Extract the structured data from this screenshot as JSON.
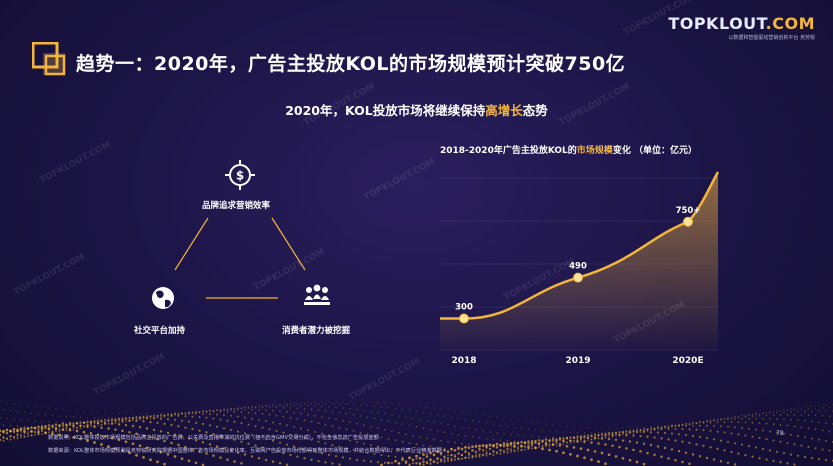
{
  "header": {
    "title": "趋势一：2020年，广告主投放KOL的市场规模预计突破750亿",
    "logo_main_a": "TOPKLOUT",
    "logo_main_b": ".COM",
    "logo_sub": "以数据和智能驱动营销创新平台 克劳锐"
  },
  "subtitle": {
    "prefix": "2020年，KOL投放市场将继续保持",
    "highlight": "高增长",
    "suffix": "态势"
  },
  "diagram": {
    "nodes": [
      {
        "label": "品牌追求营销效率",
        "icon": "dollar-target-icon"
      },
      {
        "label": "社交平台加持",
        "icon": "globe-icon"
      },
      {
        "label": "消费者潜力被挖掘",
        "icon": "audience-icon"
      }
    ]
  },
  "chart_data": {
    "type": "area",
    "title_prefix": "2018-2020年广告主投放KOL的",
    "title_highlight": "市场规模",
    "title_suffix": "变化 （单位：亿元）",
    "categories": [
      "2018",
      "2019",
      "2020E"
    ],
    "values": [
      300,
      490,
      750
    ],
    "labels": [
      "300",
      "490",
      "750+"
    ],
    "ylim": [
      200,
      1000
    ],
    "grid": true,
    "colors": {
      "line": "#f3b53c",
      "point": "#fbe39a"
    }
  },
  "footer": {
    "note": "数据说明：KOL整体投放市场规模包括品牌主投放的广告费、公关费及直播带货的坑位费（但不包含GMV交易分成），不包含信息流广告投放金额",
    "source": "数据来源：KOL整体市场规模预测是克劳锐研究院根据中国整体广告市场规模及变化率、互联网广告投放市场份额得到整体市场规模，并结合数据得出，不代表行业精准数据",
    "page": "78"
  },
  "watermark": "TOPKLOUT.COM",
  "watermark_sub": "克劳锐"
}
